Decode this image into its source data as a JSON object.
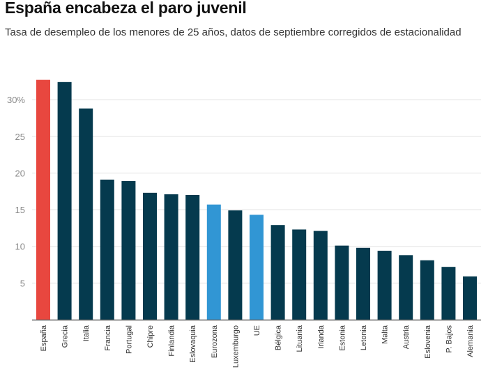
{
  "header": {
    "title": "España encabeza el paro juvenil",
    "subtitle": "Tasa de desempleo de los menores de 25 años, datos de septiembre corregidos de estacionalidad"
  },
  "colors": {
    "highlight": "#e8473f",
    "default": "#053a4e",
    "aggregate": "#3196d4",
    "grid": "#e3e3e3",
    "axis": "#666666"
  },
  "chart_data": {
    "type": "bar",
    "title": "España encabeza el paro juvenil",
    "subtitle": "Tasa de desempleo de los menores de 25 años, datos de septiembre corregidos de estacionalidad",
    "xlabel": "",
    "ylabel": "",
    "ylim": [
      0,
      33
    ],
    "yticks": [
      {
        "value": 5,
        "label": "5"
      },
      {
        "value": 10,
        "label": "10"
      },
      {
        "value": 15,
        "label": "15"
      },
      {
        "value": 20,
        "label": "20"
      },
      {
        "value": 25,
        "label": "25"
      },
      {
        "value": 30,
        "label": "30%"
      }
    ],
    "grid": true,
    "legend": "none",
    "categories": [
      "España",
      "Grecia",
      "Italia",
      "Francia",
      "Portugal",
      "Chipre",
      "Finlandia",
      "Eslovaquia",
      "Eurozona",
      "Luxemburgo",
      "UE",
      "Bélgica",
      "Lituania",
      "Irlanda",
      "Estonia",
      "Letonia",
      "Malta",
      "Austria",
      "Eslovenia",
      "P. Bajos",
      "Alemania"
    ],
    "values": [
      32.7,
      32.4,
      28.8,
      19.1,
      18.9,
      17.3,
      17.1,
      17.0,
      15.7,
      14.9,
      14.3,
      12.9,
      12.3,
      12.1,
      10.1,
      9.8,
      9.4,
      8.8,
      8.1,
      7.2,
      5.9
    ],
    "bar_groups": [
      "highlight",
      "default",
      "default",
      "default",
      "default",
      "default",
      "default",
      "default",
      "aggregate",
      "default",
      "aggregate",
      "default",
      "default",
      "default",
      "default",
      "default",
      "default",
      "default",
      "default",
      "default",
      "default"
    ]
  }
}
